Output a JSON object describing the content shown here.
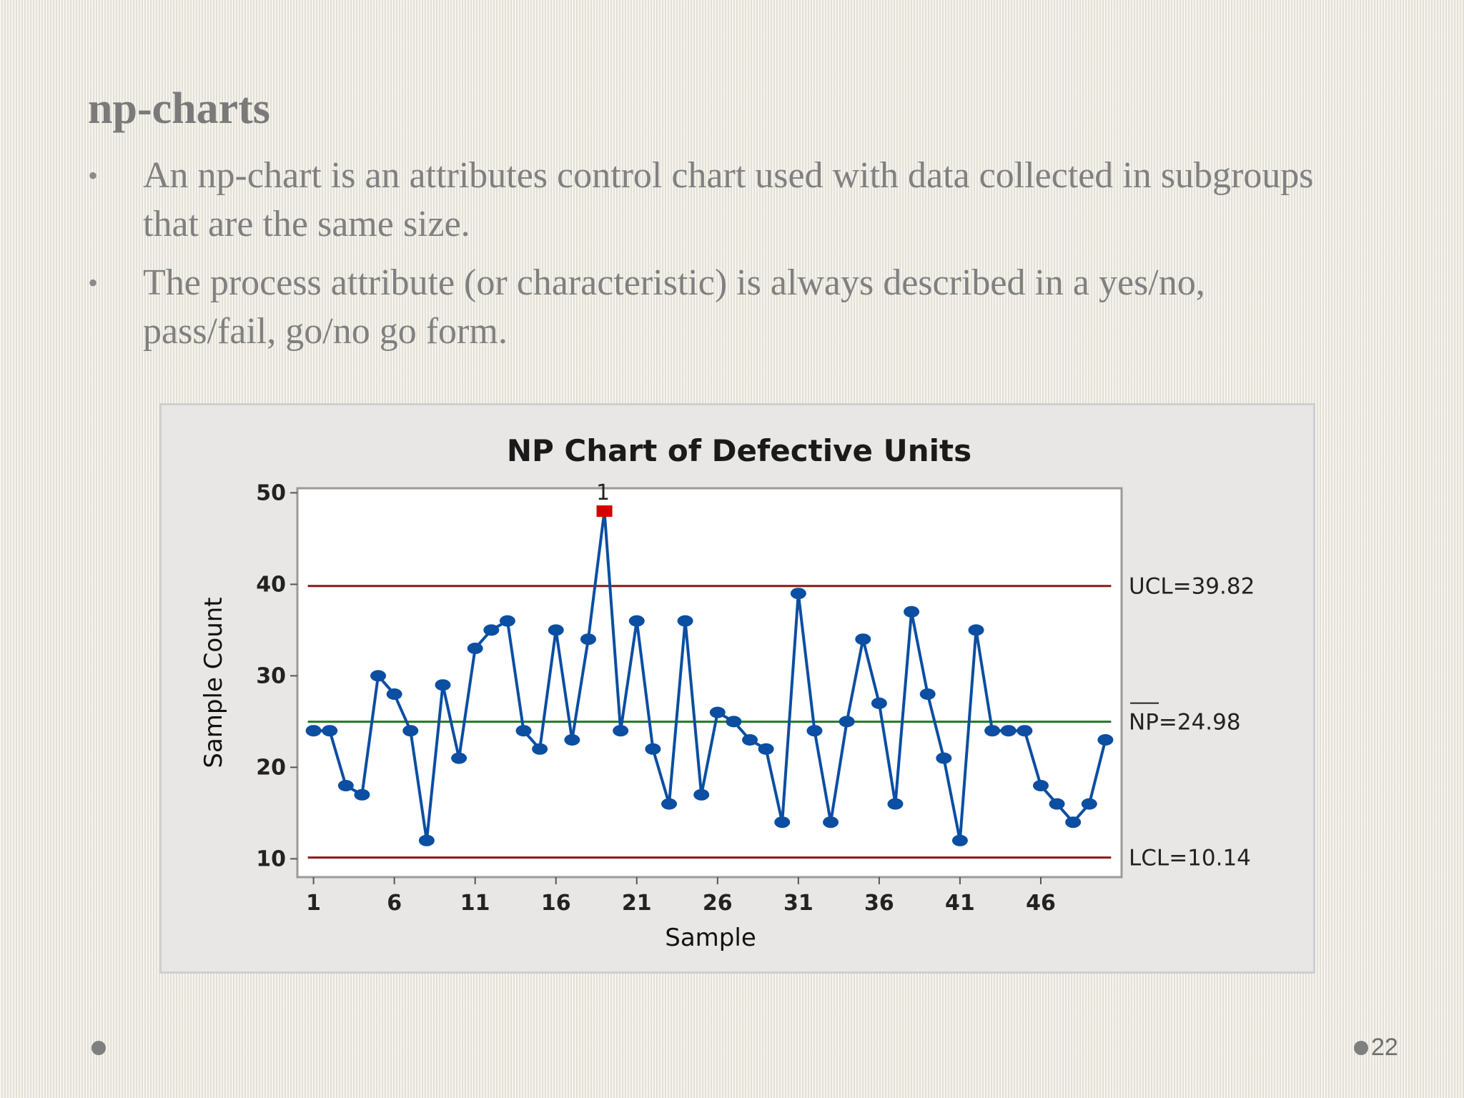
{
  "slide": {
    "title": "np-charts",
    "bullets": [
      "An np-chart is an attributes control chart used with data collected in subgroups that are the same size.",
      "The process attribute (or characteristic) is always described in a yes/no, pass/fail, go/no go form."
    ],
    "bullet_symbol": "•",
    "page_number": "22"
  },
  "chart_data": {
    "type": "line",
    "title": "NP Chart of Defective Units",
    "xlabel": "Sample",
    "ylabel": "Sample Count",
    "x_ticks": [
      1,
      6,
      11,
      16,
      21,
      26,
      31,
      36,
      41,
      46
    ],
    "y_ticks": [
      10,
      20,
      30,
      40,
      50
    ],
    "xlim": [
      0,
      51
    ],
    "ylim": [
      8,
      50.5
    ],
    "series": [
      {
        "x": [
          1,
          2,
          3,
          4,
          5,
          6,
          7,
          8,
          9,
          10,
          11,
          12,
          13,
          14,
          15,
          16,
          17,
          18,
          19,
          20,
          21,
          22,
          23,
          24,
          25,
          26,
          27,
          28,
          29,
          30,
          31,
          32,
          33,
          34,
          35,
          36,
          37,
          38,
          39,
          40,
          41,
          42,
          43,
          44,
          45,
          46,
          47,
          48,
          49,
          50
        ],
        "values": [
          24,
          24,
          18,
          17,
          30,
          28,
          24,
          12,
          29,
          21,
          33,
          35,
          36,
          24,
          22,
          35,
          23,
          34,
          48,
          24,
          36,
          22,
          16,
          36,
          17,
          26,
          25,
          23,
          22,
          14,
          39,
          24,
          14,
          25,
          34,
          27,
          16,
          37,
          28,
          21,
          12,
          35,
          24,
          24,
          24,
          18,
          16,
          14,
          16,
          23
        ]
      }
    ],
    "out_of_control": [
      {
        "x": 19,
        "value": 48,
        "label": "1"
      }
    ],
    "center_line": {
      "value": 24.98,
      "label": "NP=24.98"
    },
    "ucl": {
      "value": 39.82,
      "label": "UCL=39.82"
    },
    "lcl": {
      "value": 10.14,
      "label": "LCL=10.14"
    },
    "colors": {
      "series": "#0b4ea2",
      "limits": "#8b1a1a",
      "center": "#1f7a1f",
      "out_of_control": "#d40000"
    }
  }
}
